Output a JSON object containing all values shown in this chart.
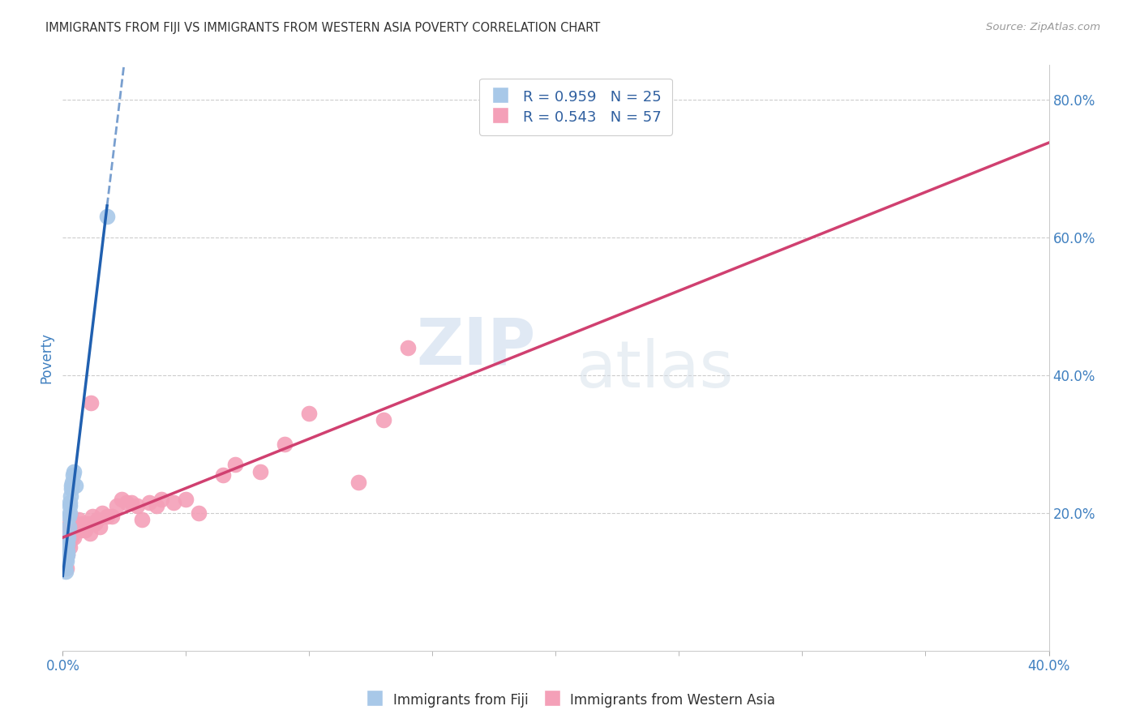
{
  "title": "IMMIGRANTS FROM FIJI VS IMMIGRANTS FROM WESTERN ASIA POVERTY CORRELATION CHART",
  "source": "Source: ZipAtlas.com",
  "ylabel": "Poverty",
  "xlim": [
    0.0,
    0.4
  ],
  "ylim": [
    0.0,
    0.85
  ],
  "x_tick_positions": [
    0.0,
    0.4
  ],
  "x_tick_labels": [
    "0.0%",
    "40.0%"
  ],
  "y_ticks_right": [
    0.2,
    0.4,
    0.6,
    0.8
  ],
  "y_tick_labels_right": [
    "20.0%",
    "40.0%",
    "60.0%",
    "80.0%"
  ],
  "fiji_color": "#a8c8e8",
  "fiji_line_color": "#2060b0",
  "western_asia_color": "#f4a0b8",
  "western_asia_line_color": "#d04070",
  "fiji_R": 0.959,
  "fiji_N": 25,
  "western_asia_R": 0.543,
  "western_asia_N": 57,
  "watermark_zip": "ZIP",
  "watermark_atlas": "atlas",
  "fiji_scatter_x": [
    0.0004,
    0.0006,
    0.0008,
    0.001,
    0.0012,
    0.0014,
    0.0015,
    0.0016,
    0.0018,
    0.002,
    0.002,
    0.0022,
    0.0024,
    0.0026,
    0.0028,
    0.003,
    0.003,
    0.0032,
    0.0034,
    0.0036,
    0.004,
    0.0042,
    0.0045,
    0.005,
    0.018
  ],
  "fiji_scatter_y": [
    0.13,
    0.125,
    0.12,
    0.14,
    0.115,
    0.13,
    0.135,
    0.16,
    0.145,
    0.14,
    0.155,
    0.165,
    0.18,
    0.195,
    0.21,
    0.2,
    0.215,
    0.225,
    0.235,
    0.24,
    0.245,
    0.255,
    0.26,
    0.24,
    0.63
  ],
  "western_asia_scatter_x": [
    0.0004,
    0.0006,
    0.0008,
    0.001,
    0.0012,
    0.0014,
    0.0016,
    0.0018,
    0.002,
    0.0022,
    0.0024,
    0.0026,
    0.003,
    0.003,
    0.0032,
    0.0035,
    0.004,
    0.0042,
    0.0045,
    0.005,
    0.0055,
    0.006,
    0.0065,
    0.007,
    0.0075,
    0.008,
    0.009,
    0.01,
    0.011,
    0.0115,
    0.012,
    0.013,
    0.014,
    0.015,
    0.016,
    0.018,
    0.02,
    0.022,
    0.024,
    0.026,
    0.028,
    0.03,
    0.032,
    0.035,
    0.038,
    0.04,
    0.045,
    0.05,
    0.055,
    0.065,
    0.07,
    0.08,
    0.09,
    0.1,
    0.12,
    0.13,
    0.14
  ],
  "western_asia_scatter_y": [
    0.145,
    0.125,
    0.13,
    0.15,
    0.135,
    0.12,
    0.155,
    0.14,
    0.16,
    0.155,
    0.175,
    0.165,
    0.15,
    0.185,
    0.195,
    0.165,
    0.175,
    0.18,
    0.165,
    0.185,
    0.175,
    0.175,
    0.19,
    0.18,
    0.175,
    0.185,
    0.175,
    0.185,
    0.17,
    0.36,
    0.195,
    0.185,
    0.19,
    0.18,
    0.2,
    0.195,
    0.195,
    0.21,
    0.22,
    0.215,
    0.215,
    0.21,
    0.19,
    0.215,
    0.21,
    0.22,
    0.215,
    0.22,
    0.2,
    0.255,
    0.27,
    0.26,
    0.3,
    0.345,
    0.245,
    0.335,
    0.44
  ],
  "background_color": "#ffffff",
  "grid_color": "#cccccc",
  "title_color": "#333333",
  "axis_label_color": "#4080c0",
  "legend_text_color": "#3060a0"
}
